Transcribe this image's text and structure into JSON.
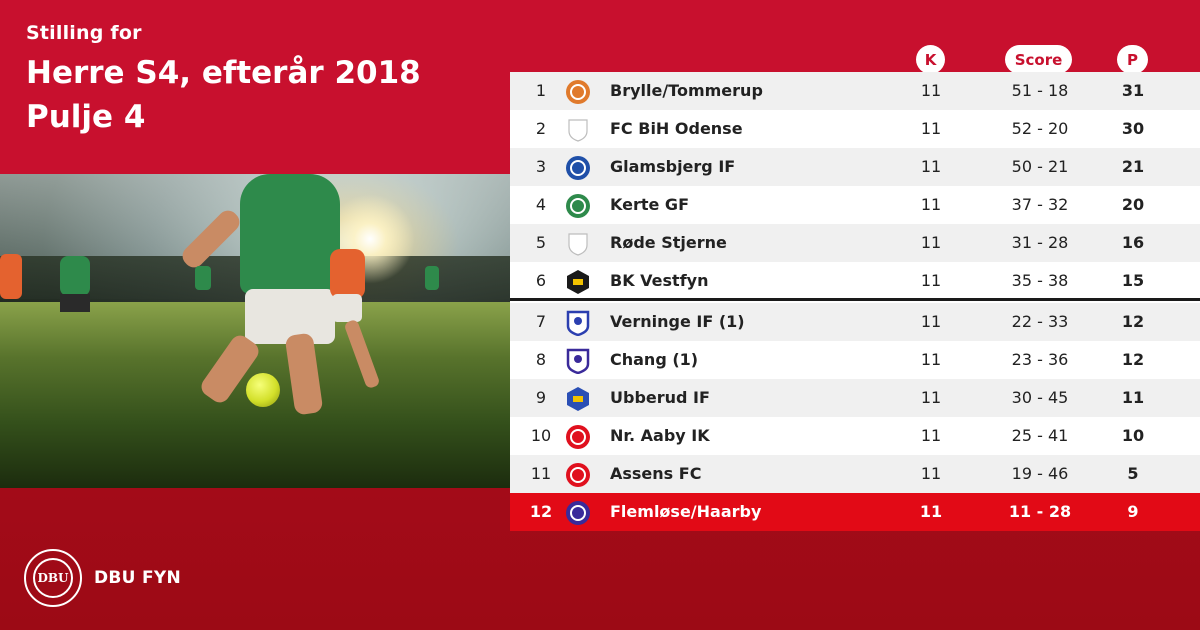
{
  "header": {
    "label": "Stilling for",
    "title_line1": "Herre S4, efterår 2018",
    "title_line2": "Pulje 4"
  },
  "columns": {
    "k": "K",
    "score": "Score",
    "p": "P"
  },
  "standings": [
    {
      "pos": "1",
      "team": "Brylle/Tommerup",
      "k": "11",
      "score": "51 - 18",
      "p": "31",
      "badge_color": "#e07a2c"
    },
    {
      "pos": "2",
      "team": "FC BiH Odense",
      "k": "11",
      "score": "52 - 20",
      "p": "30",
      "badge_color": "#bdbdbd"
    },
    {
      "pos": "3",
      "team": "Glamsbjerg IF",
      "k": "11",
      "score": "50 - 21",
      "p": "21",
      "badge_color": "#1f4fa8"
    },
    {
      "pos": "4",
      "team": "Kerte GF",
      "k": "11",
      "score": "37 - 32",
      "p": "20",
      "badge_color": "#2e8a4b"
    },
    {
      "pos": "5",
      "team": "Røde Stjerne",
      "k": "11",
      "score": "31 - 28",
      "p": "16",
      "badge_color": "#bdbdbd"
    },
    {
      "pos": "6",
      "team": "BK Vestfyn",
      "k": "11",
      "score": "35 - 38",
      "p": "15",
      "badge_color": "#1a1a1a"
    },
    {
      "pos": "7",
      "team": "Verninge IF (1)",
      "k": "11",
      "score": "22 - 33",
      "p": "12",
      "badge_color": "#2b3fb0"
    },
    {
      "pos": "8",
      "team": "Chang  (1)",
      "k": "11",
      "score": "23 - 36",
      "p": "12",
      "badge_color": "#3a2a9a"
    },
    {
      "pos": "9",
      "team": "Ubberud IF",
      "k": "11",
      "score": "30 - 45",
      "p": "11",
      "badge_color": "#2a4fb5"
    },
    {
      "pos": "10",
      "team": "Nr. Aaby IK",
      "k": "11",
      "score": "25 - 41",
      "p": "10",
      "badge_color": "#e0101e"
    },
    {
      "pos": "11",
      "team": "Assens FC",
      "k": "11",
      "score": "19 - 46",
      "p": "5",
      "badge_color": "#e0101e"
    },
    {
      "pos": "12",
      "team": "Flemløse/Haarby",
      "k": "11",
      "score": "11 - 28",
      "p": "9",
      "badge_color": "#3a2a9a"
    }
  ],
  "brand": {
    "logo_text": "DBU",
    "name": "DBU FYN"
  },
  "colors": {
    "primary_red": "#c8102e",
    "dark_red": "#9c0a15",
    "highlight_red": "#e20a16"
  }
}
